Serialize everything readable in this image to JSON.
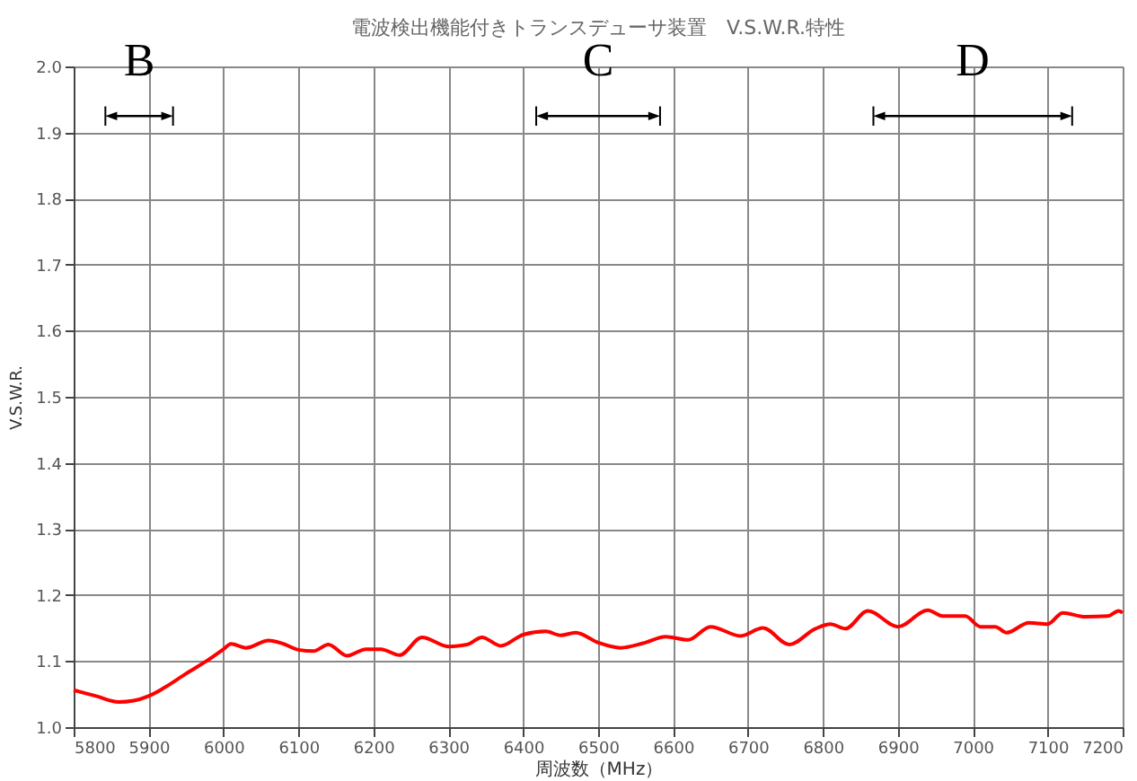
{
  "chart_data": {
    "type": "line",
    "title": "電波検出機能付きトランスデューサ装置　V.S.W.R.特性",
    "xlabel": "周波数（MHz）",
    "ylabel": "V.S.W.R.",
    "xlim": [
      5800,
      7200
    ],
    "xticks": [
      5800,
      5900,
      6000,
      6100,
      6200,
      6300,
      6400,
      6500,
      6600,
      6700,
      6800,
      6900,
      7000,
      7100,
      7200
    ],
    "ylim": [
      1.0,
      2.0
    ],
    "yticks": [
      {
        "value": 1.0,
        "label": "1.0"
      },
      {
        "value": 1.1,
        "label": "1.1"
      },
      {
        "value": 1.2,
        "label": "1.2"
      },
      {
        "value": 1.3,
        "label": "1.3"
      },
      {
        "value": 1.4,
        "label": "1.4"
      },
      {
        "value": 1.5,
        "label": "1.5"
      },
      {
        "value": 1.6,
        "label": "1.6"
      },
      {
        "value": 1.7,
        "label": "1.7"
      },
      {
        "value": 1.8,
        "label": "1.8"
      },
      {
        "value": 1.9,
        "label": "1.9"
      },
      {
        "value": 2.0,
        "label": "2.0"
      }
    ],
    "grid": true,
    "marker": "none",
    "line_style": "solid",
    "x": [
      5800,
      5830,
      5860,
      5880,
      5900,
      5920,
      5950,
      5980,
      6000,
      6010,
      6030,
      6060,
      6080,
      6100,
      6120,
      6140,
      6165,
      6190,
      6210,
      6235,
      6265,
      6300,
      6325,
      6345,
      6370,
      6400,
      6430,
      6450,
      6470,
      6500,
      6530,
      6560,
      6590,
      6620,
      6650,
      6690,
      6720,
      6755,
      6790,
      6810,
      6830,
      6860,
      6900,
      6940,
      6960,
      6990,
      7010,
      7030,
      7045,
      7075,
      7100,
      7120,
      7150,
      7180,
      7195,
      7200
    ],
    "series": [
      {
        "color": "#ff0000",
        "values": [
          1.056,
          1.047,
          1.038,
          1.04,
          1.047,
          1.059,
          1.081,
          1.102,
          1.118,
          1.126,
          1.12,
          1.131,
          1.126,
          1.117,
          1.115,
          1.125,
          1.108,
          1.118,
          1.118,
          1.109,
          1.136,
          1.122,
          1.125,
          1.136,
          1.123,
          1.14,
          1.145,
          1.139,
          1.143,
          1.128,
          1.12,
          1.127,
          1.137,
          1.132,
          1.152,
          1.138,
          1.15,
          1.125,
          1.149,
          1.156,
          1.149,
          1.176,
          1.152,
          1.177,
          1.168,
          1.168,
          1.152,
          1.152,
          1.143,
          1.158,
          1.156,
          1.173,
          1.167,
          1.168,
          1.176,
          1.173
        ]
      },
      {
        "name": "B",
        "color": "#000000",
        "marker": "triangle",
        "x": [
          5850,
          5925
        ],
        "values": [
          1.925,
          1.925
        ]
      },
      {
        "name": "C",
        "color": "#000000",
        "marker": "triangle",
        "x": [
          6425,
          6575
        ],
        "values": [
          1.925,
          1.925
        ]
      },
      {
        "name": "D",
        "color": "#000000",
        "marker": "triangle",
        "x": [
          6875,
          7125
        ],
        "values": [
          1.925,
          1.925
        ]
      }
    ]
  }
}
